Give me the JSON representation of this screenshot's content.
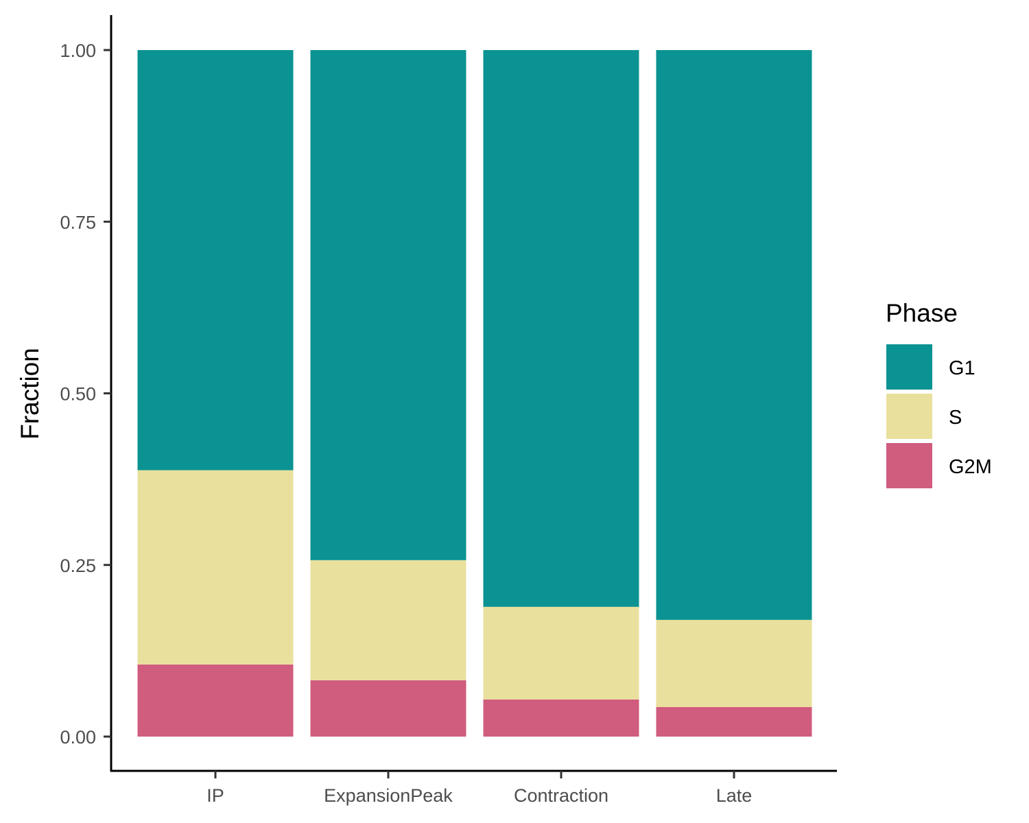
{
  "chart_data": {
    "type": "bar",
    "stacked": true,
    "categories": [
      "IP",
      "ExpansionPeak",
      "Contraction",
      "Late"
    ],
    "series": [
      {
        "name": "G2M",
        "color": "#D05C7E",
        "values": [
          0.105,
          0.082,
          0.054,
          0.043
        ]
      },
      {
        "name": "S",
        "color": "#EAE09D",
        "values": [
          0.283,
          0.175,
          0.135,
          0.127
        ]
      },
      {
        "name": "G1",
        "color": "#0A9392",
        "values": [
          0.612,
          0.743,
          0.811,
          0.83
        ]
      }
    ],
    "title": "",
    "xlabel": "",
    "ylabel": "Fraction",
    "ylim": [
      0,
      1
    ],
    "yticks": [
      "0.00",
      "0.25",
      "0.50",
      "0.75",
      "1.00"
    ],
    "ytick_values": [
      0,
      0.25,
      0.5,
      0.75,
      1
    ],
    "grid": false,
    "legend": {
      "title": "Phase",
      "placement": "right",
      "order": [
        "G1",
        "S",
        "G2M"
      ]
    }
  }
}
